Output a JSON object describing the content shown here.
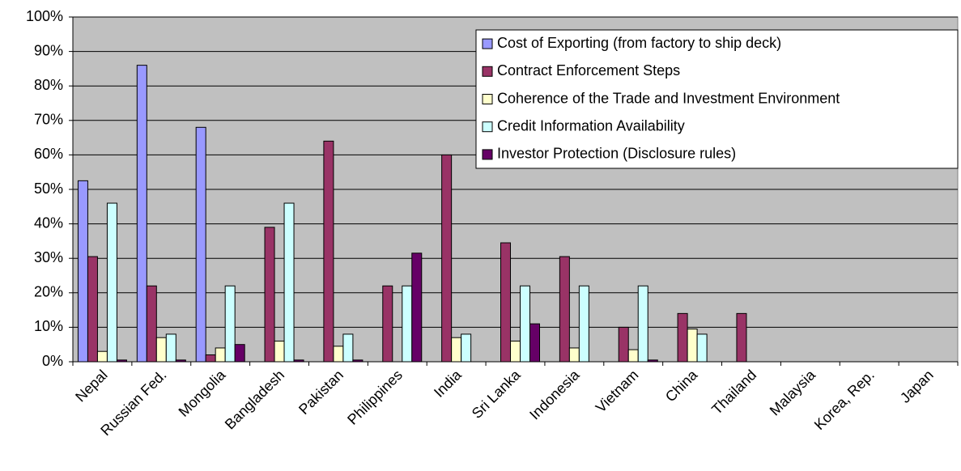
{
  "chart_data": {
    "type": "bar",
    "categories": [
      "Nepal",
      "Russian Fed.",
      "Mongolia",
      "Bangladesh",
      "Pakistan",
      "Philippines",
      "India",
      "Sri Lanka",
      "Indonesia",
      "Vietnam",
      "China",
      "Thailand",
      "Malaysia",
      "Korea, Rep.",
      "Japan"
    ],
    "series": [
      {
        "name": "Cost of Exporting (from factory to ship deck)",
        "color": "#9999ff",
        "values": [
          52.5,
          86,
          68,
          0,
          0,
          0,
          0,
          0,
          0,
          0,
          0,
          0,
          0,
          0,
          0
        ]
      },
      {
        "name": "Contract Enforcement Steps",
        "color": "#993366",
        "values": [
          30.5,
          22,
          2,
          39,
          64,
          22,
          60,
          34.5,
          30.5,
          10,
          14,
          14,
          0,
          0,
          0
        ]
      },
      {
        "name": "Coherence of the Trade and Investment Environment",
        "color": "#ffffcc",
        "values": [
          3,
          7,
          4,
          6,
          4.5,
          0,
          7,
          6,
          4,
          3.5,
          9.5,
          0,
          0,
          0,
          0
        ]
      },
      {
        "name": "Credit Information Availability",
        "color": "#ccffff",
        "values": [
          46,
          8,
          22,
          46,
          8,
          22,
          8,
          22,
          22,
          22,
          8,
          0,
          0,
          0,
          0
        ]
      },
      {
        "name": "Investor Protection (Disclosure rules)",
        "color": "#660066",
        "values": [
          0.5,
          0.5,
          5,
          0.5,
          0.5,
          31.5,
          0,
          11,
          0,
          0.5,
          0,
          0,
          0,
          0,
          0
        ]
      }
    ],
    "ylim": [
      0,
      100
    ],
    "yticks": [
      {
        "value": 0,
        "label": "0%"
      },
      {
        "value": 10,
        "label": "10%"
      },
      {
        "value": 20,
        "label": "20%"
      },
      {
        "value": 30,
        "label": "30%"
      },
      {
        "value": 40,
        "label": "40%"
      },
      {
        "value": 50,
        "label": "50%"
      },
      {
        "value": 60,
        "label": "60%"
      },
      {
        "value": 70,
        "label": "70%"
      },
      {
        "value": 80,
        "label": "80%"
      },
      {
        "value": 90,
        "label": "90%"
      },
      {
        "value": 100,
        "label": "100%"
      }
    ],
    "grid": true,
    "plot_background": "#c0c0c0",
    "legend": "upper right"
  }
}
